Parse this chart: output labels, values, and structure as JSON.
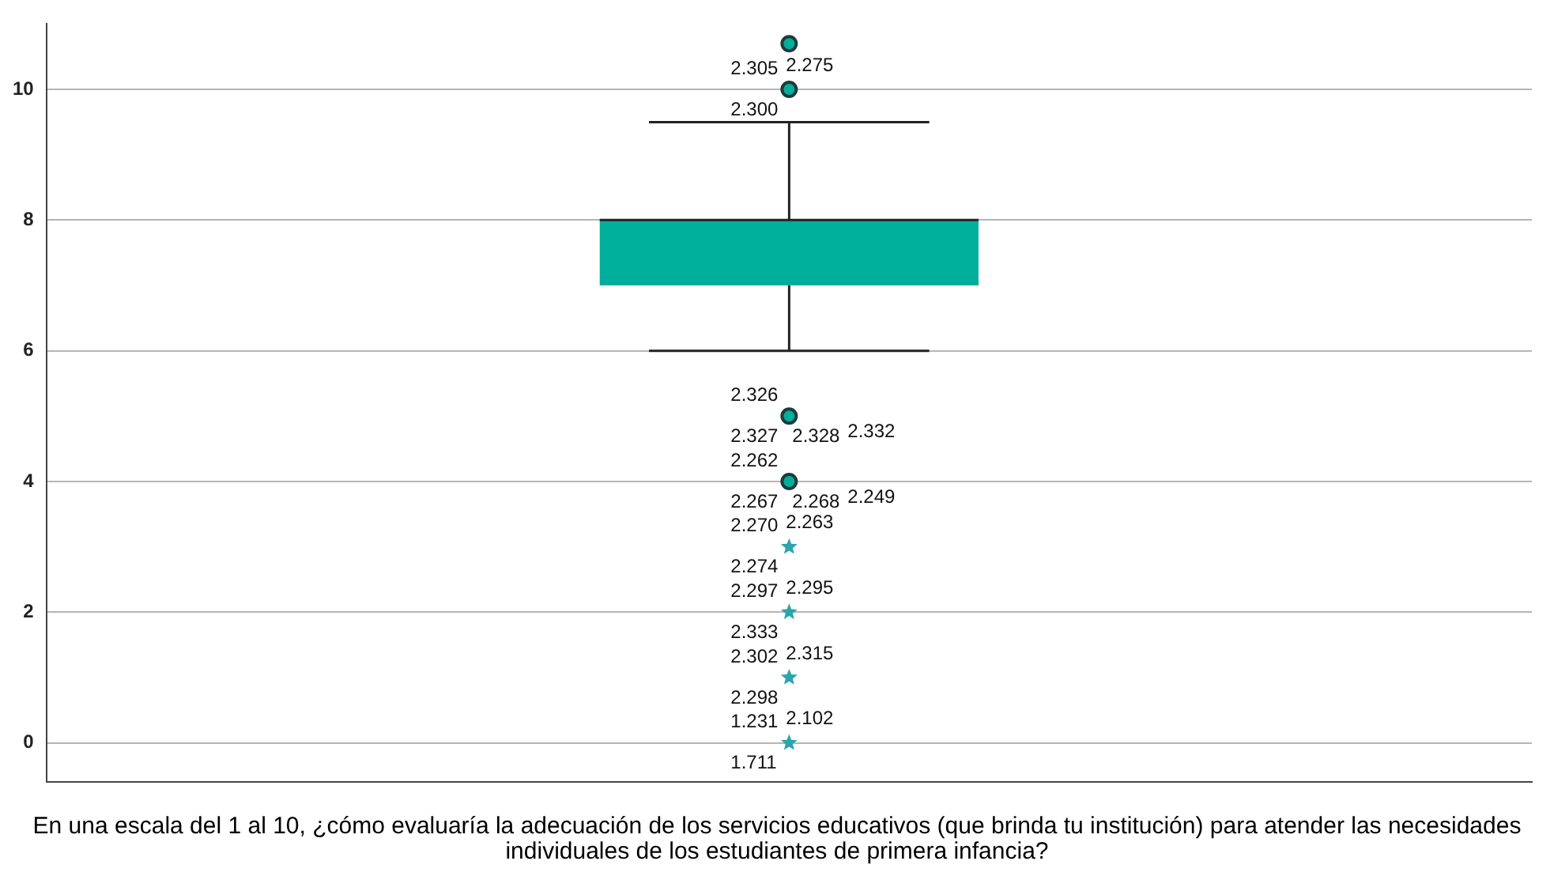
{
  "chart_data": {
    "type": "box",
    "categories": [
      null
    ],
    "xlabel": "En una escala del 1 al 10, ¿cómo evaluaría la adecuación de los servicios educativos (que brinda tu institución) para atender las necesidades individuales de los estudiantes de primera infancia?",
    "series": [
      {
        "type": "box",
        "color": "#00af9b",
        "boxes": [
          {
            "low": 6,
            "q1": 7,
            "median": 8,
            "q3": 8,
            "high": 9.5,
            "outliers": [
              10.7,
              10,
              5,
              4
            ]
          }
        ]
      },
      {
        "type": "scatter",
        "marker": "star",
        "color": "#2aa5ad",
        "x": [
          null,
          null,
          null,
          null
        ],
        "values": [
          3,
          2,
          1,
          0
        ]
      }
    ],
    "ylim": [
      -0.6,
      11
    ],
    "yticks": [
      0,
      2,
      4,
      6,
      8,
      10
    ],
    "grid": "y",
    "legend": false,
    "annotations": [
      "2.305",
      "2.275",
      "2.300",
      "2.326",
      "2.327",
      "2.328",
      "2.332",
      "2.262",
      "2.267",
      "2.268",
      "2.249",
      "2.270",
      "2.263",
      "2.274",
      "2.297",
      "2.295",
      "2.333",
      "2.302",
      "2.315",
      "2.298",
      "1.231",
      "2.102",
      "1.711"
    ]
  }
}
